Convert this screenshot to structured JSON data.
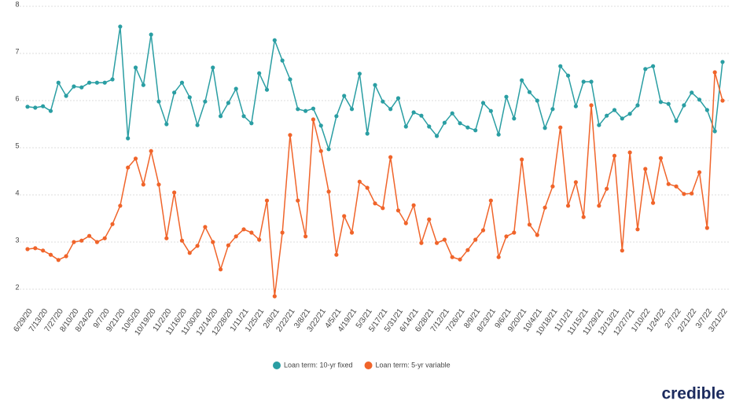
{
  "chart_data": {
    "type": "line",
    "categories": [
      "6/29/20",
      null,
      "7/13/20",
      null,
      "7/27/20",
      null,
      "8/10/20",
      null,
      "8/24/20",
      null,
      "9/7/20",
      null,
      "9/21/20",
      null,
      "10/5/20",
      null,
      "10/19/20",
      null,
      "11/2/20",
      null,
      "11/16/20",
      null,
      "11/30/20",
      null,
      "12/14/20",
      null,
      "12/28/20",
      null,
      "1/11/21",
      null,
      "1/25/21",
      null,
      "2/8/21",
      null,
      "2/22/21",
      null,
      "3/8/21",
      null,
      "3/22/21",
      null,
      "4/5/21",
      null,
      "4/19/21",
      null,
      "5/3/21",
      null,
      "5/17/21",
      null,
      "5/31/21",
      null,
      "6/14/21",
      null,
      "6/28/21",
      null,
      "7/12/21",
      null,
      "7/26/21",
      null,
      "8/9/21",
      null,
      "8/23/21",
      null,
      "9/6/21",
      null,
      "9/20/21",
      null,
      "10/4/21",
      null,
      "10/18/21",
      null,
      "11/1/21",
      null,
      "11/15/21",
      null,
      "11/29/21",
      null,
      "12/13/21",
      null,
      "12/27/21",
      null,
      "1/10/22",
      null,
      "1/24/22",
      null,
      "2/7/22",
      null,
      "2/21/22",
      null,
      "3/7/22",
      null,
      "3/21/22"
    ],
    "series": [
      {
        "name": "Loan term: 10-yr fixed",
        "color": "#2a9ea3",
        "values": [
          5.87,
          5.85,
          5.88,
          5.78,
          6.38,
          6.1,
          6.3,
          6.28,
          6.38,
          6.38,
          6.38,
          6.45,
          7.57,
          5.2,
          6.7,
          6.33,
          7.4,
          5.98,
          5.5,
          6.17,
          6.38,
          6.07,
          5.48,
          5.98,
          6.7,
          5.67,
          5.95,
          6.25,
          5.67,
          5.52,
          6.58,
          6.23,
          7.28,
          6.85,
          6.45,
          5.82,
          5.78,
          5.83,
          5.47,
          4.97,
          5.67,
          6.1,
          5.82,
          6.57,
          5.3,
          6.33,
          5.98,
          5.82,
          6.05,
          5.45,
          5.75,
          5.68,
          5.45,
          5.25,
          5.53,
          5.73,
          5.52,
          5.43,
          5.37,
          5.95,
          5.78,
          5.28,
          6.08,
          5.62,
          6.43,
          6.18,
          6.0,
          5.42,
          5.82,
          6.73,
          6.53,
          5.88,
          6.4,
          6.4,
          5.48,
          5.68,
          5.8,
          5.62,
          5.72,
          5.9,
          6.67,
          6.73,
          5.97,
          5.93,
          5.57,
          5.9,
          6.17,
          6.02,
          5.8,
          5.35,
          6.82
        ]
      },
      {
        "name": "Loan term: 5-yr variable",
        "color": "#f0642a",
        "values": [
          2.85,
          2.87,
          2.82,
          2.73,
          2.62,
          2.7,
          3.0,
          3.03,
          3.13,
          3.0,
          3.08,
          3.38,
          3.77,
          4.58,
          4.77,
          4.22,
          4.93,
          4.22,
          3.08,
          4.05,
          3.03,
          2.77,
          2.92,
          3.32,
          3.0,
          2.42,
          2.93,
          3.12,
          3.27,
          3.2,
          3.05,
          3.88,
          1.85,
          3.2,
          5.27,
          3.88,
          3.12,
          5.6,
          4.93,
          4.07,
          2.73,
          3.55,
          3.2,
          4.28,
          4.15,
          3.82,
          3.72,
          4.8,
          3.67,
          3.4,
          3.78,
          2.98,
          3.48,
          2.98,
          3.05,
          2.68,
          2.63,
          2.83,
          3.05,
          3.25,
          3.88,
          2.68,
          3.12,
          3.2,
          4.75,
          3.37,
          3.15,
          3.73,
          4.18,
          5.43,
          3.77,
          4.27,
          3.53,
          5.9,
          3.77,
          4.13,
          4.83,
          2.82,
          4.9,
          3.27,
          4.55,
          3.83,
          4.78,
          4.23,
          4.18,
          4.02,
          4.03,
          4.48,
          3.3,
          6.6,
          6.0
        ]
      }
    ],
    "ylim": [
      1.8,
      8
    ],
    "yticks": [
      2,
      3,
      4,
      5,
      6,
      7,
      8
    ],
    "grid": true,
    "legend": "bottom"
  },
  "brand": "credible"
}
